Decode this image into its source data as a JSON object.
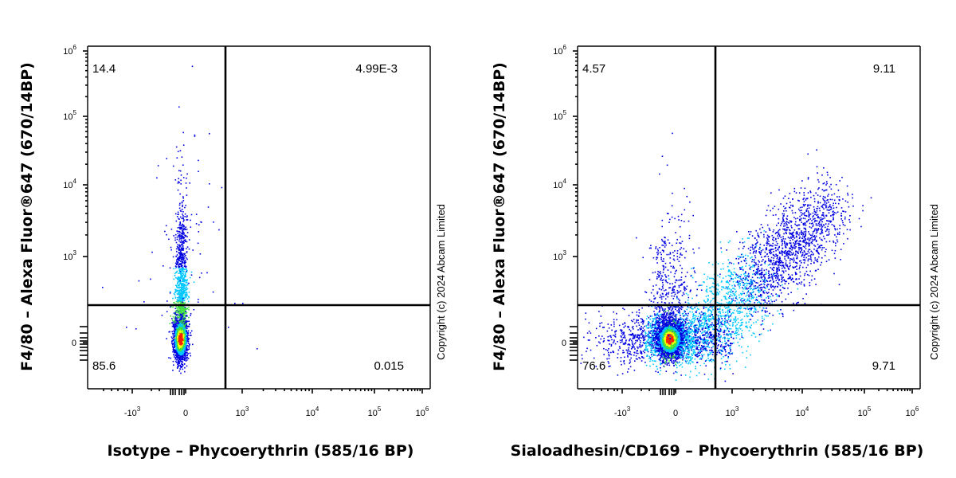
{
  "colors": {
    "axis": "#000000",
    "density_low": "#0000e0",
    "density_mid_low": "#00c8ff",
    "density_mid": "#40e040",
    "density_mid_high": "#ffff00",
    "density_high": "#ff2000"
  },
  "chart_data": [
    {
      "type": "scatter",
      "subtype": "flow-cytometry density dot plot with quadrant gates",
      "xlabel": "Isotype – Phycoerythrin (585/16 BP)",
      "ylabel": "F4/80 – Alexa Fluor®647 (670/14BP)",
      "copyright": "Copyright (c) 2024 Abcam Limited",
      "x_scale": "biexponential",
      "y_scale": "biexponential",
      "x_ticks": [
        {
          "base": "-10",
          "exp": "3"
        },
        {
          "base": "0",
          "exp": ""
        },
        {
          "base": "10",
          "exp": "3"
        },
        {
          "base": "10",
          "exp": "4"
        },
        {
          "base": "10",
          "exp": "5"
        },
        {
          "base": "10",
          "exp": "6"
        }
      ],
      "y_ticks": [
        {
          "base": "0",
          "exp": ""
        },
        {
          "base": "10",
          "exp": "3"
        },
        {
          "base": "10",
          "exp": "4"
        },
        {
          "base": "10",
          "exp": "5"
        },
        {
          "base": "10",
          "exp": "6"
        }
      ],
      "quadrants": {
        "upper_left": "14.4",
        "upper_right": "4.99E-3",
        "lower_left": "85.6",
        "lower_right": "0.015"
      },
      "populations": [
        {
          "name": "main",
          "x_center": -100,
          "y_center": 0,
          "shape": "narrow vertical column extending up to ~10^4 on y"
        }
      ]
    },
    {
      "type": "scatter",
      "subtype": "flow-cytometry density dot plot with quadrant gates",
      "xlabel": "Sialoadhesin/CD169 – Phycoerythrin (585/16 BP)",
      "ylabel": "F4/80 – Alexa Fluor®647 (670/14BP)",
      "copyright": "Copyright (c) 2024 Abcam Limited",
      "x_scale": "biexponential",
      "y_scale": "biexponential",
      "x_ticks": [
        {
          "base": "-10",
          "exp": "3"
        },
        {
          "base": "0",
          "exp": ""
        },
        {
          "base": "10",
          "exp": "3"
        },
        {
          "base": "10",
          "exp": "4"
        },
        {
          "base": "10",
          "exp": "5"
        },
        {
          "base": "10",
          "exp": "6"
        }
      ],
      "y_ticks": [
        {
          "base": "0",
          "exp": ""
        },
        {
          "base": "10",
          "exp": "3"
        },
        {
          "base": "10",
          "exp": "4"
        },
        {
          "base": "10",
          "exp": "5"
        },
        {
          "base": "10",
          "exp": "6"
        }
      ],
      "quadrants": {
        "upper_left": "4.57",
        "upper_right": "9.11",
        "lower_left": "76.6",
        "lower_right": "9.71"
      },
      "populations": [
        {
          "name": "negative",
          "x_center": -100,
          "y_center": 0,
          "shape": "dense core with horizontal spread"
        },
        {
          "name": "double-positive tail",
          "x_center": 3000,
          "y_center": 1000,
          "shape": "diagonal tail toward upper right"
        }
      ]
    }
  ]
}
